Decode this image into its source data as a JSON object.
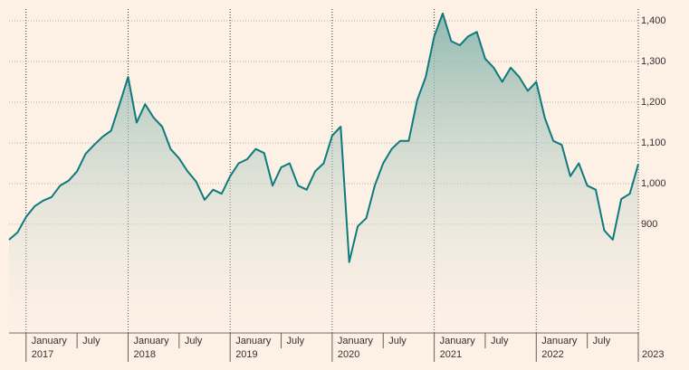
{
  "chart_data": {
    "type": "area",
    "x": [
      "2016-11",
      "2016-12",
      "2017-01",
      "2017-02",
      "2017-03",
      "2017-04",
      "2017-05",
      "2017-06",
      "2017-07",
      "2017-08",
      "2017-09",
      "2017-10",
      "2017-11",
      "2017-12",
      "2018-01",
      "2018-02",
      "2018-03",
      "2018-04",
      "2018-05",
      "2018-06",
      "2018-07",
      "2018-08",
      "2018-09",
      "2018-10",
      "2018-11",
      "2018-12",
      "2019-01",
      "2019-02",
      "2019-03",
      "2019-04",
      "2019-05",
      "2019-06",
      "2019-07",
      "2019-08",
      "2019-09",
      "2019-10",
      "2019-11",
      "2019-12",
      "2020-01",
      "2020-02",
      "2020-03",
      "2020-04",
      "2020-05",
      "2020-06",
      "2020-07",
      "2020-08",
      "2020-09",
      "2020-10",
      "2020-11",
      "2020-12",
      "2021-01",
      "2021-02",
      "2021-03",
      "2021-04",
      "2021-05",
      "2021-06",
      "2021-07",
      "2021-08",
      "2021-09",
      "2021-10",
      "2021-11",
      "2021-12",
      "2022-01",
      "2022-02",
      "2022-03",
      "2022-04",
      "2022-05",
      "2022-06",
      "2022-07",
      "2022-08",
      "2022-09",
      "2022-10",
      "2022-11",
      "2022-12",
      "2023-01"
    ],
    "values": [
      862,
      880,
      918,
      944,
      958,
      967,
      995,
      1007,
      1030,
      1073,
      1095,
      1115,
      1130,
      1195,
      1262,
      1150,
      1195,
      1162,
      1140,
      1085,
      1062,
      1030,
      1005,
      960,
      985,
      975,
      1018,
      1050,
      1060,
      1085,
      1075,
      995,
      1040,
      1050,
      995,
      985,
      1030,
      1050,
      1118,
      1140,
      807,
      895,
      915,
      995,
      1050,
      1085,
      1105,
      1105,
      1205,
      1262,
      1362,
      1418,
      1350,
      1340,
      1362,
      1373,
      1307,
      1285,
      1250,
      1285,
      1262,
      1228,
      1250,
      1162,
      1105,
      1095,
      1018,
      1050,
      995,
      985,
      885,
      862,
      962,
      975,
      1048
    ],
    "color": "#0f7a7d",
    "xlim": [
      "2016-11",
      "2023-01"
    ],
    "xticks": [
      {
        "value": "2017-01",
        "label": "January",
        "year": "2017"
      },
      {
        "value": "2017-07",
        "label": "July"
      },
      {
        "value": "2018-01",
        "label": "January",
        "year": "2018"
      },
      {
        "value": "2018-07",
        "label": "July"
      },
      {
        "value": "2019-01",
        "label": "January",
        "year": "2019"
      },
      {
        "value": "2019-07",
        "label": "July"
      },
      {
        "value": "2020-01",
        "label": "January",
        "year": "2020"
      },
      {
        "value": "2020-07",
        "label": "July"
      },
      {
        "value": "2021-01",
        "label": "January",
        "year": "2021"
      },
      {
        "value": "2021-07",
        "label": "July"
      },
      {
        "value": "2022-01",
        "label": "January",
        "year": "2022"
      },
      {
        "value": "2022-07",
        "label": "July"
      },
      {
        "value": "2023-01",
        "year": "2023"
      }
    ],
    "ylim": [
      633,
      1429
    ],
    "yticks": [
      900,
      {
        "value": 1000,
        "label": "1,000"
      },
      {
        "value": 1100,
        "label": "1,100"
      },
      {
        "value": 1200,
        "label": "1,200"
      },
      {
        "value": 1300,
        "label": "1,300"
      },
      {
        "value": 1400,
        "label": "1,400"
      }
    ],
    "grid": true
  }
}
